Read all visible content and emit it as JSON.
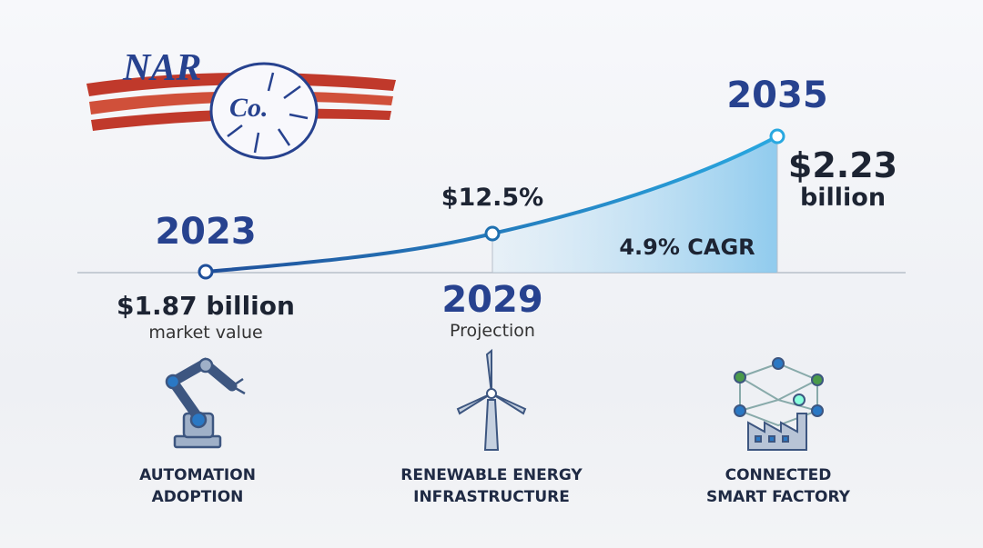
{
  "logo": {
    "word": "NAR",
    "mark": "Co."
  },
  "milestones": [
    {
      "year": "2023",
      "value": "$1.87 billion",
      "note": "market value"
    },
    {
      "value": "$12.5%",
      "year": "2029",
      "note": "Projection"
    },
    {
      "year": "2035",
      "value": "$2.23",
      "unit": "billion"
    }
  ],
  "cagr": "4.9% CAGR",
  "features": [
    {
      "lines": [
        "AUTOMATION",
        "ADOPTION"
      ]
    },
    {
      "lines": [
        "RENEWABLE ENERGY",
        "INFRASTRUCTURE"
      ]
    },
    {
      "lines": [
        "CONNECTED",
        "SMART FACTORY"
      ]
    }
  ]
}
